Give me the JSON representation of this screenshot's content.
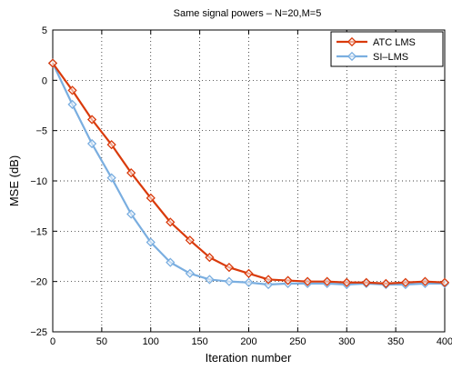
{
  "chart_data": {
    "type": "line",
    "title": "Same signal powers – N=20,M=5",
    "xlabel": "Iteration number",
    "ylabel": "MSE (dB)",
    "xlim": [
      0,
      400
    ],
    "ylim": [
      -25,
      5
    ],
    "xticks": [
      0,
      50,
      100,
      150,
      200,
      250,
      300,
      350,
      400
    ],
    "yticks": [
      5,
      0,
      -5,
      -10,
      -15,
      -20,
      -25
    ],
    "xtick_labels": [
      "0",
      "50",
      "100",
      "150",
      "200",
      "250",
      "300",
      "350",
      "400"
    ],
    "ytick_labels": [
      "5",
      "0",
      "−5",
      "−10",
      "−15",
      "−20",
      "−25"
    ],
    "grid": true,
    "legend_position": "top-right",
    "x": [
      0,
      20,
      40,
      60,
      80,
      100,
      120,
      140,
      160,
      180,
      200,
      220,
      240,
      260,
      280,
      300,
      320,
      340,
      360,
      380,
      400
    ],
    "series": [
      {
        "name": "ATC LMS",
        "color": "#d93a0b",
        "marker": "diamond",
        "values": [
          1.7,
          -1.0,
          -3.9,
          -6.4,
          -9.2,
          -11.7,
          -14.1,
          -15.9,
          -17.6,
          -18.6,
          -19.2,
          -19.8,
          -19.9,
          -20.0,
          -20.0,
          -20.1,
          -20.1,
          -20.2,
          -20.1,
          -20.0,
          -20.1
        ]
      },
      {
        "name": "SI–LMS",
        "color": "#7aaee0",
        "marker": "diamond",
        "values": [
          1.7,
          -2.4,
          -6.3,
          -9.7,
          -13.3,
          -16.1,
          -18.1,
          -19.2,
          -19.8,
          -20.0,
          -20.1,
          -20.3,
          -20.2,
          -20.2,
          -20.2,
          -20.3,
          -20.2,
          -20.3,
          -20.3,
          -20.2,
          -20.2
        ]
      }
    ]
  }
}
